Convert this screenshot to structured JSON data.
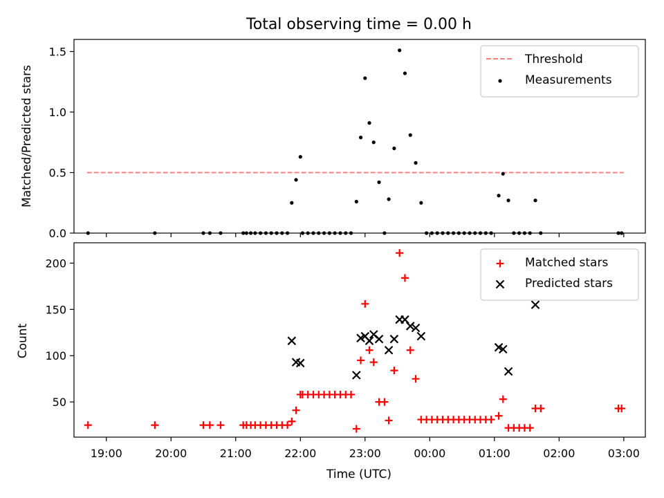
{
  "chart_data": [
    {
      "type": "scatter",
      "title": "Total observing time = 0.00 h",
      "ylabel": "Matched/Predicted stars",
      "xlabel": "",
      "xlim": [
        "18:30",
        "03:20"
      ],
      "ylim": [
        0,
        1.6
      ],
      "yticks": [
        "0.0",
        "0.5",
        "1.0",
        "1.5"
      ],
      "xticks": [
        "19:00",
        "20:00",
        "21:00",
        "22:00",
        "23:00",
        "00:00",
        "01:00",
        "02:00",
        "03:00"
      ],
      "legend_position": "top-right",
      "grid": false,
      "threshold": {
        "name": "Threshold",
        "value": 0.5,
        "x_range": [
          "18:42",
          "03:00"
        ],
        "color": "#ff7f7f"
      },
      "series": [
        {
          "name": "Measurements",
          "color": "#000000",
          "points": [
            [
              "18:43",
              0.0
            ],
            [
              "19:45",
              0.0
            ],
            [
              "20:30",
              0.0
            ],
            [
              "20:36",
              0.0
            ],
            [
              "20:46",
              0.0
            ],
            [
              "21:07",
              0.0
            ],
            [
              "21:10",
              0.0
            ],
            [
              "21:14",
              0.0
            ],
            [
              "21:18",
              0.0
            ],
            [
              "21:23",
              0.0
            ],
            [
              "21:28",
              0.0
            ],
            [
              "21:33",
              0.0
            ],
            [
              "21:38",
              0.0
            ],
            [
              "21:43",
              0.0
            ],
            [
              "21:48",
              0.0
            ],
            [
              "21:52",
              0.25
            ],
            [
              "21:56",
              0.44
            ],
            [
              "22:00",
              0.63
            ],
            [
              "22:02",
              0.0
            ],
            [
              "22:07",
              0.0
            ],
            [
              "22:12",
              0.0
            ],
            [
              "22:17",
              0.0
            ],
            [
              "22:22",
              0.0
            ],
            [
              "22:27",
              0.0
            ],
            [
              "22:32",
              0.0
            ],
            [
              "22:37",
              0.0
            ],
            [
              "22:42",
              0.0
            ],
            [
              "22:47",
              0.0
            ],
            [
              "22:52",
              0.26
            ],
            [
              "22:56",
              0.79
            ],
            [
              "23:00",
              1.28
            ],
            [
              "23:04",
              0.91
            ],
            [
              "23:08",
              0.75
            ],
            [
              "23:13",
              0.42
            ],
            [
              "23:18",
              0.0
            ],
            [
              "23:22",
              0.28
            ],
            [
              "23:27",
              0.7
            ],
            [
              "23:32",
              1.51
            ],
            [
              "23:37",
              1.32
            ],
            [
              "23:42",
              0.81
            ],
            [
              "23:47",
              0.58
            ],
            [
              "23:52",
              0.25
            ],
            [
              "23:57",
              0.0
            ],
            [
              "00:02",
              0.0
            ],
            [
              "00:07",
              0.0
            ],
            [
              "00:12",
              0.0
            ],
            [
              "00:17",
              0.0
            ],
            [
              "00:22",
              0.0
            ],
            [
              "00:27",
              0.0
            ],
            [
              "00:32",
              0.0
            ],
            [
              "00:37",
              0.0
            ],
            [
              "00:42",
              0.0
            ],
            [
              "00:47",
              0.0
            ],
            [
              "00:52",
              0.0
            ],
            [
              "00:57",
              0.0
            ],
            [
              "01:04",
              0.31
            ],
            [
              "01:08",
              0.49
            ],
            [
              "01:13",
              0.27
            ],
            [
              "01:18",
              0.0
            ],
            [
              "01:23",
              0.0
            ],
            [
              "01:28",
              0.0
            ],
            [
              "01:33",
              0.0
            ],
            [
              "01:38",
              0.27
            ],
            [
              "01:43",
              0.0
            ],
            [
              "02:55",
              0.0
            ],
            [
              "02:58",
              0.0
            ]
          ]
        }
      ]
    },
    {
      "type": "scatter",
      "title": "",
      "ylabel": "Count",
      "xlabel": "Time (UTC)",
      "xlim": [
        "18:30",
        "03:20"
      ],
      "ylim": [
        12,
        222
      ],
      "yticks": [
        "50",
        "100",
        "150",
        "200"
      ],
      "xticks": [
        "19:00",
        "20:00",
        "21:00",
        "22:00",
        "23:00",
        "00:00",
        "01:00",
        "02:00",
        "03:00"
      ],
      "legend_position": "top-right",
      "grid": false,
      "series": [
        {
          "name": "Matched stars",
          "marker": "plus",
          "color": "#ff0000",
          "points": [
            [
              "18:43",
              25
            ],
            [
              "19:45",
              25
            ],
            [
              "20:30",
              25
            ],
            [
              "20:36",
              25
            ],
            [
              "20:46",
              25
            ],
            [
              "21:07",
              25
            ],
            [
              "21:10",
              25
            ],
            [
              "21:14",
              25
            ],
            [
              "21:18",
              25
            ],
            [
              "21:23",
              25
            ],
            [
              "21:28",
              25
            ],
            [
              "21:33",
              25
            ],
            [
              "21:38",
              25
            ],
            [
              "21:43",
              25
            ],
            [
              "21:48",
              25
            ],
            [
              "21:52",
              29
            ],
            [
              "21:56",
              41
            ],
            [
              "22:00",
              58
            ],
            [
              "22:02",
              58
            ],
            [
              "22:07",
              58
            ],
            [
              "22:12",
              58
            ],
            [
              "22:17",
              58
            ],
            [
              "22:22",
              58
            ],
            [
              "22:27",
              58
            ],
            [
              "22:32",
              58
            ],
            [
              "22:37",
              58
            ],
            [
              "22:42",
              58
            ],
            [
              "22:47",
              58
            ],
            [
              "22:52",
              21
            ],
            [
              "22:56",
              95
            ],
            [
              "23:00",
              156
            ],
            [
              "23:04",
              106
            ],
            [
              "23:08",
              93
            ],
            [
              "23:13",
              50
            ],
            [
              "23:18",
              50
            ],
            [
              "23:22",
              30
            ],
            [
              "23:27",
              84
            ],
            [
              "23:32",
              211
            ],
            [
              "23:37",
              184
            ],
            [
              "23:42",
              106
            ],
            [
              "23:47",
              75
            ],
            [
              "23:52",
              31
            ],
            [
              "23:57",
              31
            ],
            [
              "00:02",
              31
            ],
            [
              "00:07",
              31
            ],
            [
              "00:12",
              31
            ],
            [
              "00:17",
              31
            ],
            [
              "00:22",
              31
            ],
            [
              "00:27",
              31
            ],
            [
              "00:32",
              31
            ],
            [
              "00:37",
              31
            ],
            [
              "00:42",
              31
            ],
            [
              "00:47",
              31
            ],
            [
              "00:52",
              31
            ],
            [
              "00:57",
              31
            ],
            [
              "01:04",
              35
            ],
            [
              "01:08",
              53
            ],
            [
              "01:13",
              22
            ],
            [
              "01:18",
              22
            ],
            [
              "01:23",
              22
            ],
            [
              "01:28",
              22
            ],
            [
              "01:33",
              22
            ],
            [
              "01:38",
              43
            ],
            [
              "01:43",
              43
            ],
            [
              "02:55",
              43
            ],
            [
              "02:58",
              43
            ]
          ]
        },
        {
          "name": "Predicted stars",
          "marker": "x",
          "color": "#000000",
          "points": [
            [
              "21:52",
              116
            ],
            [
              "21:56",
              93
            ],
            [
              "22:00",
              92
            ],
            [
              "22:52",
              79
            ],
            [
              "22:56",
              119
            ],
            [
              "23:00",
              121
            ],
            [
              "23:04",
              116
            ],
            [
              "23:08",
              123
            ],
            [
              "23:13",
              118
            ],
            [
              "23:22",
              106
            ],
            [
              "23:27",
              118
            ],
            [
              "23:32",
              139
            ],
            [
              "23:37",
              139
            ],
            [
              "23:42",
              132
            ],
            [
              "23:47",
              130
            ],
            [
              "23:52",
              121
            ],
            [
              "01:04",
              109
            ],
            [
              "01:08",
              107
            ],
            [
              "01:13",
              83
            ],
            [
              "01:38",
              155
            ]
          ]
        }
      ]
    }
  ]
}
